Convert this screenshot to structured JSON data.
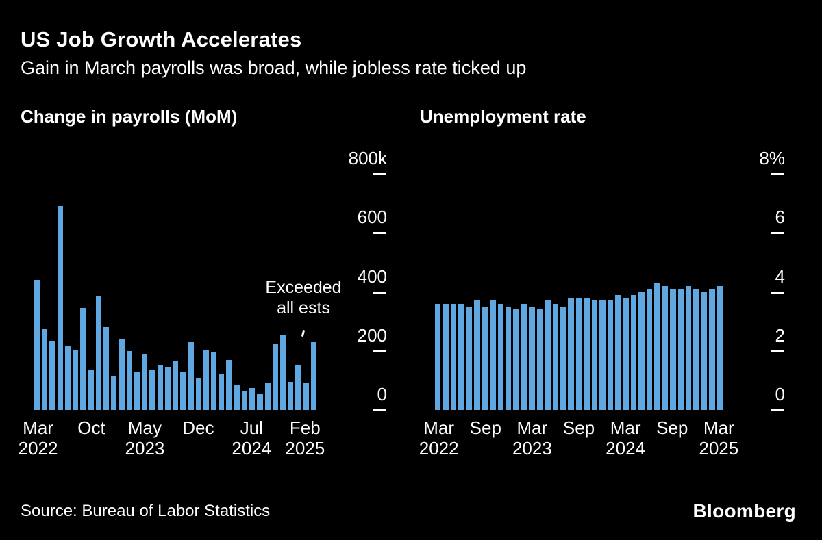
{
  "header": {
    "title": "US Job Growth Accelerates",
    "subtitle": "Gain in March payrolls was broad, while jobless rate ticked up"
  },
  "footer": {
    "source": "Source: Bureau of Labor Statistics",
    "brand": "Bloomberg"
  },
  "colors": {
    "background": "#000000",
    "bar": "#5FA8E1",
    "text": "#FFFFFF"
  },
  "chart_data": [
    {
      "type": "bar",
      "title": "Change in payrolls (MoM)",
      "unit": "thousands of jobs",
      "ylim": [
        0,
        800
      ],
      "grid": false,
      "legend": "none",
      "yticks": [
        {
          "value": 800,
          "label": "800k"
        },
        {
          "value": 600,
          "label": "600"
        },
        {
          "value": 400,
          "label": "400"
        },
        {
          "value": 200,
          "label": "200"
        },
        {
          "value": 0,
          "label": "0"
        }
      ],
      "xticks": [
        {
          "index": 0,
          "label": "Mar",
          "year": "2022"
        },
        {
          "index": 7,
          "label": "Oct"
        },
        {
          "index": 14,
          "label": "May",
          "year": "2023"
        },
        {
          "index": 21,
          "label": "Dec"
        },
        {
          "index": 28,
          "label": "Jul",
          "year": "2024"
        },
        {
          "index": 35,
          "label": "Feb",
          "year": "2025"
        }
      ],
      "x": [
        "Mar 2022",
        "Apr 2022",
        "May 2022",
        "Jun 2022",
        "Jul 2022",
        "Aug 2022",
        "Sep 2022",
        "Oct 2022",
        "Nov 2022",
        "Dec 2022",
        "Jan 2023",
        "Feb 2023",
        "Mar 2023",
        "Apr 2023",
        "May 2023",
        "Jun 2023",
        "Jul 2023",
        "Aug 2023",
        "Sep 2023",
        "Oct 2023",
        "Nov 2023",
        "Dec 2023",
        "Jan 2024",
        "Feb 2024",
        "Mar 2024",
        "Apr 2024",
        "May 2024",
        "Jun 2024",
        "Jul 2024",
        "Aug 2024",
        "Sep 2024",
        "Oct 2024",
        "Nov 2024",
        "Dec 2024",
        "Jan 2025",
        "Feb 2025",
        "Mar 2025"
      ],
      "values": [
        440,
        275,
        235,
        690,
        215,
        205,
        345,
        135,
        385,
        280,
        115,
        240,
        200,
        130,
        190,
        135,
        150,
        145,
        165,
        130,
        230,
        110,
        205,
        195,
        120,
        170,
        85,
        65,
        75,
        55,
        90,
        225,
        255,
        95,
        150,
        90,
        230
      ],
      "annotation": {
        "lines": [
          "Exceeded",
          "all ests"
        ],
        "target": "Mar 2025"
      }
    },
    {
      "type": "bar",
      "title": "Unemployment rate",
      "unit": "percent",
      "ylim": [
        0,
        8
      ],
      "grid": false,
      "legend": "none",
      "yticks": [
        {
          "value": 8,
          "label": "8%"
        },
        {
          "value": 6,
          "label": "6"
        },
        {
          "value": 4,
          "label": "4"
        },
        {
          "value": 2,
          "label": "2"
        },
        {
          "value": 0,
          "label": "0"
        }
      ],
      "xticks": [
        {
          "index": 0,
          "label": "Mar",
          "year": "2022"
        },
        {
          "index": 6,
          "label": "Sep"
        },
        {
          "index": 12,
          "label": "Mar",
          "year": "2023"
        },
        {
          "index": 18,
          "label": "Sep"
        },
        {
          "index": 24,
          "label": "Mar",
          "year": "2024"
        },
        {
          "index": 30,
          "label": "Sep"
        },
        {
          "index": 36,
          "label": "Mar",
          "year": "2025"
        }
      ],
      "x": [
        "Mar 2022",
        "Apr 2022",
        "May 2022",
        "Jun 2022",
        "Jul 2022",
        "Aug 2022",
        "Sep 2022",
        "Oct 2022",
        "Nov 2022",
        "Dec 2022",
        "Jan 2023",
        "Feb 2023",
        "Mar 2023",
        "Apr 2023",
        "May 2023",
        "Jun 2023",
        "Jul 2023",
        "Aug 2023",
        "Sep 2023",
        "Oct 2023",
        "Nov 2023",
        "Dec 2023",
        "Jan 2024",
        "Feb 2024",
        "Mar 2024",
        "Apr 2024",
        "May 2024",
        "Jun 2024",
        "Jul 2024",
        "Aug 2024",
        "Sep 2024",
        "Oct 2024",
        "Nov 2024",
        "Dec 2024",
        "Jan 2025",
        "Feb 2025",
        "Mar 2025"
      ],
      "values": [
        3.6,
        3.6,
        3.6,
        3.6,
        3.5,
        3.7,
        3.5,
        3.7,
        3.6,
        3.5,
        3.4,
        3.6,
        3.5,
        3.4,
        3.7,
        3.6,
        3.5,
        3.8,
        3.8,
        3.8,
        3.7,
        3.7,
        3.7,
        3.9,
        3.8,
        3.9,
        4.0,
        4.1,
        4.3,
        4.2,
        4.1,
        4.1,
        4.2,
        4.1,
        4.0,
        4.1,
        4.2
      ]
    }
  ]
}
